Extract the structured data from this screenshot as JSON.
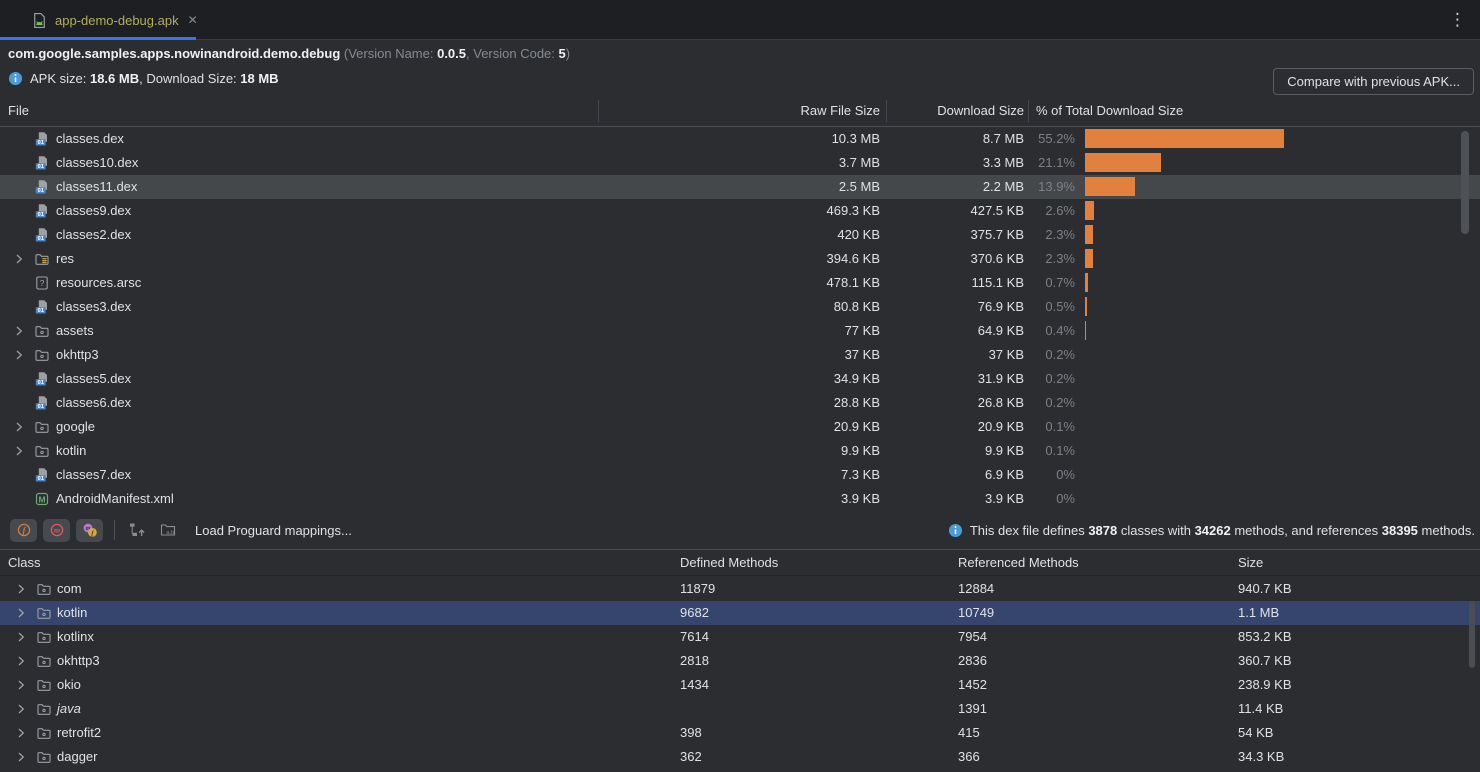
{
  "colors": {
    "bar_orange": "#e2813e",
    "selection_blue": "#35456e",
    "selection_gray": "#45484b",
    "tab_underline_blue": "#3574f0",
    "tab_label_olive": "#b3ae60",
    "info_blue": "#4a9bd8"
  },
  "tab": {
    "label": "app-demo-debug.apk",
    "close_glyph": "✕",
    "menu_glyph": "⋮"
  },
  "header": {
    "package_name": "com.google.samples.apps.nowinandroid.demo.debug",
    "version_prefix": "(Version Name: ",
    "version_name": "0.0.5",
    "version_mid": ", Version Code: ",
    "version_code": "5",
    "version_suffix": ")",
    "apk_size_label": "APK size: ",
    "apk_size": "18.6 MB",
    "download_size_label": ", Download Size: ",
    "download_size": "18 MB",
    "compare_button_label": "Compare with previous APK..."
  },
  "file_table": {
    "columns": {
      "file": "File",
      "raw": "Raw File Size",
      "download": "Download Size",
      "percent": "% of Total Download Size"
    },
    "rows": [
      {
        "name": "classes.dex",
        "icon": "dex",
        "expandable": false,
        "selected": false,
        "raw": "10.3 MB",
        "download": "8.7 MB",
        "pct": "55.2%",
        "pct_num": 55.2
      },
      {
        "name": "classes10.dex",
        "icon": "dex",
        "expandable": false,
        "selected": false,
        "raw": "3.7 MB",
        "download": "3.3 MB",
        "pct": "21.1%",
        "pct_num": 21.1
      },
      {
        "name": "classes11.dex",
        "icon": "dex",
        "expandable": false,
        "selected": true,
        "raw": "2.5 MB",
        "download": "2.2 MB",
        "pct": "13.9%",
        "pct_num": 13.9
      },
      {
        "name": "classes9.dex",
        "icon": "dex",
        "expandable": false,
        "selected": false,
        "raw": "469.3 KB",
        "download": "427.5 KB",
        "pct": "2.6%",
        "pct_num": 2.6
      },
      {
        "name": "classes2.dex",
        "icon": "dex",
        "expandable": false,
        "selected": false,
        "raw": "420 KB",
        "download": "375.7 KB",
        "pct": "2.3%",
        "pct_num": 2.3
      },
      {
        "name": "res",
        "icon": "res-folder",
        "expandable": true,
        "selected": false,
        "raw": "394.6 KB",
        "download": "370.6 KB",
        "pct": "2.3%",
        "pct_num": 2.3
      },
      {
        "name": "resources.arsc",
        "icon": "unknown",
        "expandable": false,
        "selected": false,
        "raw": "478.1 KB",
        "download": "115.1 KB",
        "pct": "0.7%",
        "pct_num": 0.7
      },
      {
        "name": "classes3.dex",
        "icon": "dex",
        "expandable": false,
        "selected": false,
        "raw": "80.8 KB",
        "download": "76.9 KB",
        "pct": "0.5%",
        "pct_num": 0.5
      },
      {
        "name": "assets",
        "icon": "folder",
        "expandable": true,
        "selected": false,
        "raw": "77 KB",
        "download": "64.9 KB",
        "pct": "0.4%",
        "pct_num": 0.4
      },
      {
        "name": "okhttp3",
        "icon": "folder",
        "expandable": true,
        "selected": false,
        "raw": "37 KB",
        "download": "37 KB",
        "pct": "0.2%",
        "pct_num": 0.2
      },
      {
        "name": "classes5.dex",
        "icon": "dex",
        "expandable": false,
        "selected": false,
        "raw": "34.9 KB",
        "download": "31.9 KB",
        "pct": "0.2%",
        "pct_num": 0.2
      },
      {
        "name": "classes6.dex",
        "icon": "dex",
        "expandable": false,
        "selected": false,
        "raw": "28.8 KB",
        "download": "26.8 KB",
        "pct": "0.2%",
        "pct_num": 0.2
      },
      {
        "name": "google",
        "icon": "folder",
        "expandable": true,
        "selected": false,
        "raw": "20.9 KB",
        "download": "20.9 KB",
        "pct": "0.1%",
        "pct_num": 0.1
      },
      {
        "name": "kotlin",
        "icon": "folder",
        "expandable": true,
        "selected": false,
        "raw": "9.9 KB",
        "download": "9.9 KB",
        "pct": "0.1%",
        "pct_num": 0.1
      },
      {
        "name": "classes7.dex",
        "icon": "dex",
        "expandable": false,
        "selected": false,
        "raw": "7.3 KB",
        "download": "6.9 KB",
        "pct": "0%",
        "pct_num": 0
      },
      {
        "name": "AndroidManifest.xml",
        "icon": "manifest",
        "expandable": false,
        "selected": false,
        "raw": "3.9 KB",
        "download": "3.9 KB",
        "pct": "0%",
        "pct_num": 0
      }
    ]
  },
  "toolbar": {
    "load_proguard_label": "Load Proguard mappings...",
    "dex_info": {
      "p1": "This dex file defines ",
      "classes_count": "3878",
      "p2": " classes with ",
      "methods_count": "34262",
      "p3": " methods, and references ",
      "referenced_count": "38395",
      "p4": " methods."
    }
  },
  "class_table": {
    "columns": {
      "class": "Class",
      "defined": "Defined Methods",
      "referenced": "Referenced Methods",
      "size": "Size"
    },
    "rows": [
      {
        "name": "com",
        "italic": false,
        "selected": false,
        "defined": "11879",
        "referenced": "12884",
        "size": "940.7 KB"
      },
      {
        "name": "kotlin",
        "italic": false,
        "selected": true,
        "defined": "9682",
        "referenced": "10749",
        "size": "1.1 MB"
      },
      {
        "name": "kotlinx",
        "italic": false,
        "selected": false,
        "defined": "7614",
        "referenced": "7954",
        "size": "853.2 KB"
      },
      {
        "name": "okhttp3",
        "italic": false,
        "selected": false,
        "defined": "2818",
        "referenced": "2836",
        "size": "360.7 KB"
      },
      {
        "name": "okio",
        "italic": false,
        "selected": false,
        "defined": "1434",
        "referenced": "1452",
        "size": "238.9 KB"
      },
      {
        "name": "java",
        "italic": true,
        "selected": false,
        "defined": "",
        "referenced": "1391",
        "size": "11.4 KB"
      },
      {
        "name": "retrofit2",
        "italic": false,
        "selected": false,
        "defined": "398",
        "referenced": "415",
        "size": "54 KB"
      },
      {
        "name": "dagger",
        "italic": false,
        "selected": false,
        "defined": "362",
        "referenced": "366",
        "size": "34.3 KB"
      }
    ]
  }
}
